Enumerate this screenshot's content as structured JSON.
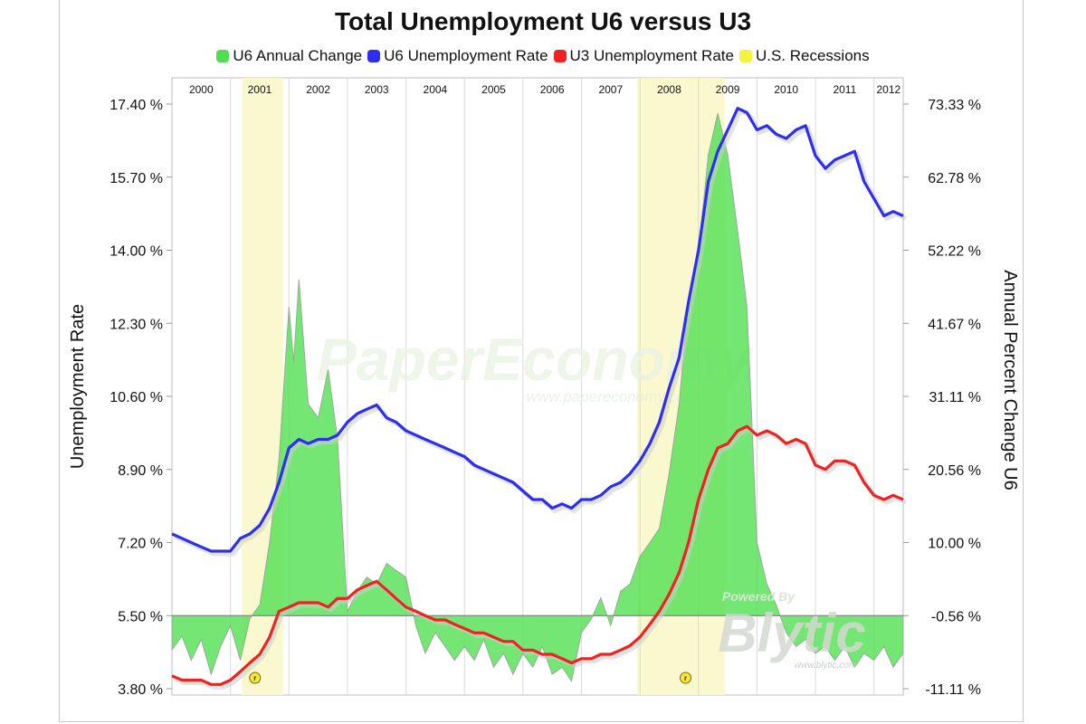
{
  "chart_data": {
    "type": "line",
    "title": "Total Unemployment U6 versus U3",
    "ylabel": "Unemployment Rate",
    "y2label": "Annual Percent Change U6",
    "ylim": [
      3.8,
      17.4
    ],
    "y2lim": [
      -11.11,
      73.33
    ],
    "yticks": [
      "17.40 %",
      "15.70 %",
      "14.00 %",
      "12.30 %",
      "10.60 %",
      "8.90 %",
      "7.20 %",
      "5.50 %",
      "3.80 %"
    ],
    "y2ticks": [
      "73.33 %",
      "62.78 %",
      "52.22 %",
      "41.67 %",
      "31.11 %",
      "20.56 %",
      "10.00 %",
      "-0.56 %",
      "-11.11 %"
    ],
    "years": [
      "2000",
      "2001",
      "2002",
      "2003",
      "2004",
      "2005",
      "2006",
      "2007",
      "2008",
      "2009",
      "2010",
      "2011",
      "2012"
    ],
    "x_start": 2000.0,
    "x_end": 2012.5,
    "grid": true,
    "legend_position": "top-center",
    "recessions": [
      {
        "start": 2001.2,
        "end": 2001.9
      },
      {
        "start": 2007.95,
        "end": 2009.45
      }
    ],
    "recession_markers": [
      {
        "x": 2001.42,
        "label": "r"
      },
      {
        "x": 2008.78,
        "label": "r"
      }
    ],
    "series": [
      {
        "name": "U6 Annual Change",
        "axis": "right",
        "color": "#50e050",
        "points": [
          [
            2000.0,
            -5.5
          ],
          [
            2000.17,
            -3.5
          ],
          [
            2000.33,
            -7
          ],
          [
            2000.5,
            -4
          ],
          [
            2000.67,
            -9
          ],
          [
            2000.83,
            -5
          ],
          [
            2001.0,
            -2
          ],
          [
            2001.17,
            -7
          ],
          [
            2001.33,
            -1
          ],
          [
            2001.5,
            1
          ],
          [
            2001.67,
            10
          ],
          [
            2001.83,
            22
          ],
          [
            2002.0,
            44
          ],
          [
            2002.08,
            36
          ],
          [
            2002.17,
            48
          ],
          [
            2002.33,
            30
          ],
          [
            2002.5,
            28
          ],
          [
            2002.67,
            35
          ],
          [
            2002.83,
            25
          ],
          [
            2003.0,
            0
          ],
          [
            2003.17,
            3
          ],
          [
            2003.33,
            5
          ],
          [
            2003.5,
            4
          ],
          [
            2003.67,
            7
          ],
          [
            2003.83,
            6
          ],
          [
            2004.0,
            5
          ],
          [
            2004.17,
            -2
          ],
          [
            2004.33,
            -6
          ],
          [
            2004.5,
            -3
          ],
          [
            2004.67,
            -5
          ],
          [
            2004.83,
            -7
          ],
          [
            2005.0,
            -5
          ],
          [
            2005.17,
            -7
          ],
          [
            2005.33,
            -4
          ],
          [
            2005.5,
            -8
          ],
          [
            2005.67,
            -6
          ],
          [
            2005.83,
            -9
          ],
          [
            2006.0,
            -6
          ],
          [
            2006.17,
            -8
          ],
          [
            2006.33,
            -5
          ],
          [
            2006.5,
            -9
          ],
          [
            2006.67,
            -8
          ],
          [
            2006.83,
            -10
          ],
          [
            2007.0,
            -3
          ],
          [
            2007.17,
            -1
          ],
          [
            2007.33,
            2
          ],
          [
            2007.5,
            -2
          ],
          [
            2007.67,
            3
          ],
          [
            2007.83,
            4
          ],
          [
            2008.0,
            8
          ],
          [
            2008.17,
            10
          ],
          [
            2008.33,
            12
          ],
          [
            2008.5,
            20
          ],
          [
            2008.67,
            30
          ],
          [
            2008.83,
            45
          ],
          [
            2009.0,
            52
          ],
          [
            2009.17,
            66
          ],
          [
            2009.33,
            72
          ],
          [
            2009.5,
            66
          ],
          [
            2009.67,
            55
          ],
          [
            2009.83,
            44
          ],
          [
            2010.0,
            10
          ],
          [
            2010.17,
            4
          ],
          [
            2010.33,
            1
          ],
          [
            2010.5,
            -3
          ],
          [
            2010.67,
            -5
          ],
          [
            2010.83,
            -4
          ],
          [
            2011.0,
            -6
          ],
          [
            2011.17,
            -5
          ],
          [
            2011.33,
            -7
          ],
          [
            2011.5,
            -5
          ],
          [
            2011.67,
            -8
          ],
          [
            2011.83,
            -6
          ],
          [
            2012.0,
            -7
          ],
          [
            2012.17,
            -5
          ],
          [
            2012.33,
            -8
          ],
          [
            2012.5,
            -6
          ]
        ]
      },
      {
        "name": "U6 Unemployment Rate",
        "axis": "left",
        "color": "#2e2ef0",
        "points": [
          [
            2000.0,
            7.4
          ],
          [
            2000.17,
            7.3
          ],
          [
            2000.33,
            7.2
          ],
          [
            2000.5,
            7.1
          ],
          [
            2000.67,
            7.0
          ],
          [
            2000.83,
            7.0
          ],
          [
            2001.0,
            7.0
          ],
          [
            2001.17,
            7.3
          ],
          [
            2001.33,
            7.4
          ],
          [
            2001.5,
            7.6
          ],
          [
            2001.67,
            8.0
          ],
          [
            2001.83,
            8.6
          ],
          [
            2002.0,
            9.4
          ],
          [
            2002.17,
            9.6
          ],
          [
            2002.33,
            9.5
          ],
          [
            2002.5,
            9.6
          ],
          [
            2002.67,
            9.6
          ],
          [
            2002.83,
            9.7
          ],
          [
            2003.0,
            10.0
          ],
          [
            2003.17,
            10.2
          ],
          [
            2003.33,
            10.3
          ],
          [
            2003.5,
            10.4
          ],
          [
            2003.67,
            10.1
          ],
          [
            2003.83,
            10.0
          ],
          [
            2004.0,
            9.8
          ],
          [
            2004.17,
            9.7
          ],
          [
            2004.33,
            9.6
          ],
          [
            2004.5,
            9.5
          ],
          [
            2004.67,
            9.4
          ],
          [
            2004.83,
            9.3
          ],
          [
            2005.0,
            9.2
          ],
          [
            2005.17,
            9.0
          ],
          [
            2005.33,
            8.9
          ],
          [
            2005.5,
            8.8
          ],
          [
            2005.67,
            8.7
          ],
          [
            2005.83,
            8.6
          ],
          [
            2006.0,
            8.4
          ],
          [
            2006.17,
            8.2
          ],
          [
            2006.33,
            8.2
          ],
          [
            2006.5,
            8.0
          ],
          [
            2006.67,
            8.1
          ],
          [
            2006.83,
            8.0
          ],
          [
            2007.0,
            8.2
          ],
          [
            2007.17,
            8.2
          ],
          [
            2007.33,
            8.3
          ],
          [
            2007.5,
            8.5
          ],
          [
            2007.67,
            8.6
          ],
          [
            2007.83,
            8.8
          ],
          [
            2008.0,
            9.1
          ],
          [
            2008.17,
            9.5
          ],
          [
            2008.33,
            10.0
          ],
          [
            2008.5,
            10.8
          ],
          [
            2008.67,
            11.5
          ],
          [
            2008.83,
            12.8
          ],
          [
            2009.0,
            14.0
          ],
          [
            2009.17,
            15.6
          ],
          [
            2009.33,
            16.3
          ],
          [
            2009.5,
            16.8
          ],
          [
            2009.67,
            17.3
          ],
          [
            2009.83,
            17.2
          ],
          [
            2010.0,
            16.8
          ],
          [
            2010.17,
            16.9
          ],
          [
            2010.33,
            16.7
          ],
          [
            2010.5,
            16.6
          ],
          [
            2010.67,
            16.8
          ],
          [
            2010.83,
            16.9
          ],
          [
            2011.0,
            16.2
          ],
          [
            2011.17,
            15.9
          ],
          [
            2011.33,
            16.1
          ],
          [
            2011.5,
            16.2
          ],
          [
            2011.67,
            16.3
          ],
          [
            2011.83,
            15.6
          ],
          [
            2012.0,
            15.2
          ],
          [
            2012.17,
            14.8
          ],
          [
            2012.33,
            14.9
          ],
          [
            2012.5,
            14.8
          ]
        ]
      },
      {
        "name": "U3 Unemployment Rate",
        "axis": "left",
        "color": "#ee2222",
        "points": [
          [
            2000.0,
            4.1
          ],
          [
            2000.17,
            4.0
          ],
          [
            2000.33,
            4.0
          ],
          [
            2000.5,
            4.0
          ],
          [
            2000.67,
            3.9
          ],
          [
            2000.83,
            3.9
          ],
          [
            2001.0,
            4.0
          ],
          [
            2001.17,
            4.2
          ],
          [
            2001.33,
            4.4
          ],
          [
            2001.5,
            4.6
          ],
          [
            2001.67,
            5.0
          ],
          [
            2001.83,
            5.6
          ],
          [
            2002.0,
            5.7
          ],
          [
            2002.17,
            5.8
          ],
          [
            2002.33,
            5.8
          ],
          [
            2002.5,
            5.8
          ],
          [
            2002.67,
            5.7
          ],
          [
            2002.83,
            5.9
          ],
          [
            2003.0,
            5.9
          ],
          [
            2003.17,
            6.1
          ],
          [
            2003.33,
            6.2
          ],
          [
            2003.5,
            6.3
          ],
          [
            2003.67,
            6.1
          ],
          [
            2003.83,
            5.9
          ],
          [
            2004.0,
            5.7
          ],
          [
            2004.17,
            5.6
          ],
          [
            2004.33,
            5.5
          ],
          [
            2004.5,
            5.4
          ],
          [
            2004.67,
            5.4
          ],
          [
            2004.83,
            5.3
          ],
          [
            2005.0,
            5.2
          ],
          [
            2005.17,
            5.1
          ],
          [
            2005.33,
            5.1
          ],
          [
            2005.5,
            5.0
          ],
          [
            2005.67,
            4.9
          ],
          [
            2005.83,
            4.9
          ],
          [
            2006.0,
            4.7
          ],
          [
            2006.17,
            4.7
          ],
          [
            2006.33,
            4.6
          ],
          [
            2006.5,
            4.6
          ],
          [
            2006.67,
            4.5
          ],
          [
            2006.83,
            4.4
          ],
          [
            2007.0,
            4.5
          ],
          [
            2007.17,
            4.5
          ],
          [
            2007.33,
            4.6
          ],
          [
            2007.5,
            4.6
          ],
          [
            2007.67,
            4.7
          ],
          [
            2007.83,
            4.8
          ],
          [
            2008.0,
            5.0
          ],
          [
            2008.17,
            5.3
          ],
          [
            2008.33,
            5.6
          ],
          [
            2008.5,
            6.0
          ],
          [
            2008.67,
            6.5
          ],
          [
            2008.83,
            7.2
          ],
          [
            2009.0,
            8.2
          ],
          [
            2009.17,
            8.9
          ],
          [
            2009.33,
            9.4
          ],
          [
            2009.5,
            9.5
          ],
          [
            2009.67,
            9.8
          ],
          [
            2009.83,
            9.9
          ],
          [
            2010.0,
            9.7
          ],
          [
            2010.17,
            9.8
          ],
          [
            2010.33,
            9.7
          ],
          [
            2010.5,
            9.5
          ],
          [
            2010.67,
            9.6
          ],
          [
            2010.83,
            9.5
          ],
          [
            2011.0,
            9.0
          ],
          [
            2011.17,
            8.9
          ],
          [
            2011.33,
            9.1
          ],
          [
            2011.5,
            9.1
          ],
          [
            2011.67,
            9.0
          ],
          [
            2011.83,
            8.6
          ],
          [
            2012.0,
            8.3
          ],
          [
            2012.17,
            8.2
          ],
          [
            2012.33,
            8.3
          ],
          [
            2012.5,
            8.2
          ]
        ]
      }
    ],
    "legend": [
      {
        "label": "U6 Annual Change",
        "color": "#4ee04e"
      },
      {
        "label": "U6 Unemployment Rate",
        "color": "#2e2ef0"
      },
      {
        "label": "U3 Unemployment Rate",
        "color": "#ee2222"
      },
      {
        "label": "U.S. Recessions",
        "color": "#f4f23a"
      }
    ],
    "watermarks": {
      "main": "PaperEconomy",
      "url": "www.papereconomy.com",
      "powered": "Powered By",
      "brand": "Blytic",
      "brand_url": "www.blytic.com"
    }
  }
}
